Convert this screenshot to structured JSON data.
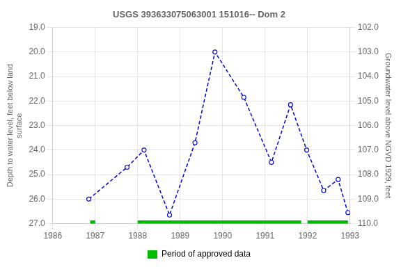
{
  "chart_data": {
    "type": "line",
    "title": "USGS 393633075063001 151016-- Dom 2",
    "xlabel": null,
    "ylabel": "Depth to water level, feet below land\nsurface",
    "y2label": "Groundwater level above NGVD 1929, feet",
    "x": [
      1986.85,
      1987.75,
      1988.15,
      1988.75,
      1989.35,
      1989.82,
      1990.5,
      1991.15,
      1991.6,
      1991.98,
      1992.38,
      1992.72,
      1992.95
    ],
    "series": [
      {
        "color": "#0000cc",
        "line_style": "dashed",
        "marker": "circle",
        "values": [
          26.0,
          24.7,
          24.0,
          26.65,
          23.7,
          20.0,
          21.85,
          24.5,
          22.15,
          24.0,
          25.65,
          25.2,
          26.55
        ]
      }
    ],
    "approved_periods": {
      "name": "Period of approved data",
      "color": "#00bb00",
      "ranges": [
        [
          1986.88,
          1987.0
        ],
        [
          1988.0,
          1991.85
        ],
        [
          1992.0,
          1992.95
        ]
      ],
      "y": 27.0,
      "height": 0.13
    },
    "xlim": [
      1986,
      1993
    ],
    "xticks": [
      1986,
      1987,
      1988,
      1989,
      1990,
      1991,
      1992,
      1993
    ],
    "ylim": [
      27.0,
      19.0
    ],
    "yticks": [
      {
        "value": 19.0,
        "label": "19.0"
      },
      {
        "value": 20.0,
        "label": "20.0"
      },
      {
        "value": 21.0,
        "label": "21.0"
      },
      {
        "value": 22.0,
        "label": "22.0"
      },
      {
        "value": 23.0,
        "label": "23.0"
      },
      {
        "value": 24.0,
        "label": "24.0"
      },
      {
        "value": 25.0,
        "label": "25.0"
      },
      {
        "value": 26.0,
        "label": "26.0"
      },
      {
        "value": 27.0,
        "label": "27.0"
      }
    ],
    "y2lim": [
      110.0,
      102.0
    ],
    "y2ticks": [
      {
        "value": 110.0,
        "label": "110.0"
      },
      {
        "value": 109.0,
        "label": "109.0"
      },
      {
        "value": 108.0,
        "label": "108.0"
      },
      {
        "value": 107.0,
        "label": "107.0"
      },
      {
        "value": 106.0,
        "label": "106.0"
      },
      {
        "value": 105.0,
        "label": "105.0"
      },
      {
        "value": 104.0,
        "label": "104.0"
      },
      {
        "value": 103.0,
        "label": "103.0"
      },
      {
        "value": 102.0,
        "label": "102.0"
      }
    ],
    "grid": true,
    "legend": "bottom"
  }
}
